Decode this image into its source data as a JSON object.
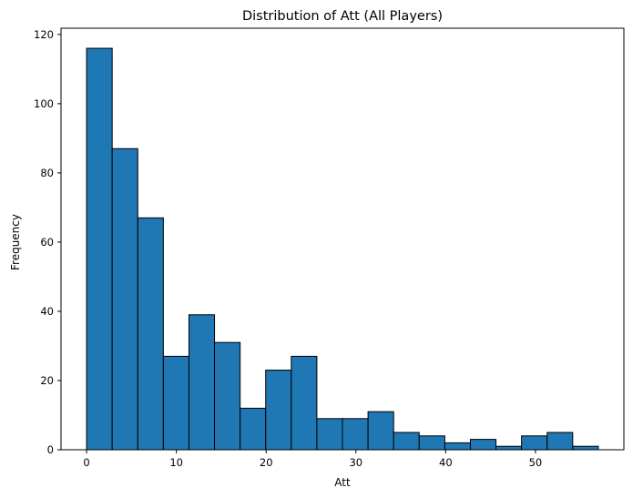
{
  "chart_data": {
    "type": "bar",
    "title": "Distribution of Att (All Players)",
    "xlabel": "Att",
    "ylabel": "Frequency",
    "bins": [
      {
        "x0": 0.0,
        "x1": 2.85,
        "count": 116
      },
      {
        "x0": 2.85,
        "x1": 5.7,
        "count": 87
      },
      {
        "x0": 5.7,
        "x1": 8.55,
        "count": 67
      },
      {
        "x0": 8.55,
        "x1": 11.4,
        "count": 27
      },
      {
        "x0": 11.4,
        "x1": 14.25,
        "count": 39
      },
      {
        "x0": 14.25,
        "x1": 17.1,
        "count": 31
      },
      {
        "x0": 17.1,
        "x1": 19.95,
        "count": 12
      },
      {
        "x0": 19.95,
        "x1": 22.8,
        "count": 23
      },
      {
        "x0": 22.8,
        "x1": 25.65,
        "count": 27
      },
      {
        "x0": 25.65,
        "x1": 28.5,
        "count": 9
      },
      {
        "x0": 28.5,
        "x1": 31.35,
        "count": 9
      },
      {
        "x0": 31.35,
        "x1": 34.2,
        "count": 11
      },
      {
        "x0": 34.2,
        "x1": 37.05,
        "count": 5
      },
      {
        "x0": 37.05,
        "x1": 39.9,
        "count": 4
      },
      {
        "x0": 39.9,
        "x1": 42.75,
        "count": 2
      },
      {
        "x0": 42.75,
        "x1": 45.6,
        "count": 3
      },
      {
        "x0": 45.6,
        "x1": 48.45,
        "count": 1
      },
      {
        "x0": 48.45,
        "x1": 51.3,
        "count": 4
      },
      {
        "x0": 51.3,
        "x1": 54.15,
        "count": 5
      },
      {
        "x0": 54.15,
        "x1": 57.0,
        "count": 1
      }
    ],
    "xlim": [
      -2.85,
      59.85
    ],
    "ylim": [
      0,
      121.8
    ],
    "xticks": [
      0,
      10,
      20,
      30,
      40,
      50
    ],
    "yticks": [
      0,
      20,
      40,
      60,
      80,
      100,
      120
    ],
    "grid": false,
    "bar_color": "#1f77b4",
    "edge_color": "#000000"
  }
}
